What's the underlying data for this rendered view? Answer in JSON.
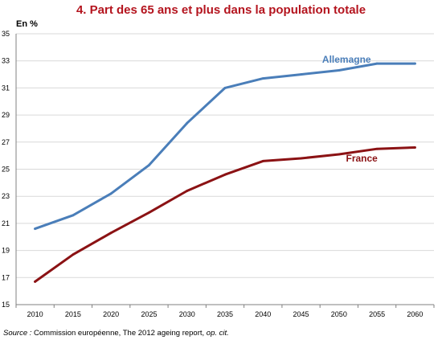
{
  "title": "4. Part des 65 ans et plus dans la population totale",
  "unit_label": "En %",
  "source": {
    "prefix": "Source :",
    "text": " Commission européenne, The 2012 ageing report, ",
    "ref": "op. cit."
  },
  "colors": {
    "title": "#b4141e",
    "grid": "#d9d9d9",
    "axis": "#808080"
  },
  "chart_data": {
    "type": "line",
    "x": [
      2010,
      2015,
      2020,
      2025,
      2030,
      2035,
      2040,
      2045,
      2050,
      2055,
      2060
    ],
    "ylim": [
      15,
      35
    ],
    "yticks": [
      15,
      17,
      19,
      21,
      23,
      25,
      27,
      29,
      31,
      33,
      35
    ],
    "grid": true,
    "series": [
      {
        "name": "Allemagne",
        "color": "#4a7eb9",
        "values": [
          20.6,
          21.6,
          23.2,
          25.3,
          28.4,
          31.0,
          31.7,
          32.0,
          32.3,
          32.8,
          32.8
        ]
      },
      {
        "name": "France",
        "color": "#8b1214",
        "values": [
          16.7,
          18.7,
          20.3,
          21.8,
          23.4,
          24.6,
          25.6,
          25.8,
          26.1,
          26.5,
          26.6
        ]
      }
    ]
  }
}
